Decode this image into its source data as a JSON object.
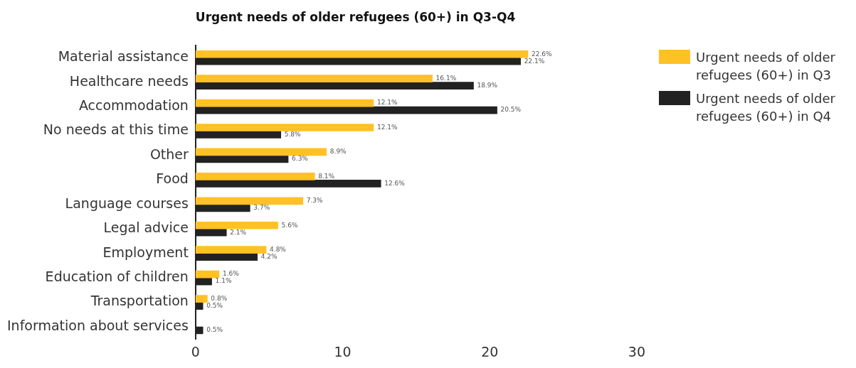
{
  "chart_data": {
    "type": "bar",
    "orientation": "horizontal",
    "title": "Urgent needs of older refugees (60+) in Q3-Q4",
    "categories": [
      "Material assistance",
      "Healthcare needs",
      "Accommodation",
      "No needs at this time",
      "Other",
      "Food",
      "Language courses",
      "Legal advice",
      "Employment",
      "Education of children",
      "Transportation",
      "Information about services"
    ],
    "series": [
      {
        "name": "Urgent needs of older refugees (60+) in Q3",
        "color": "#ffc125",
        "values": [
          22.6,
          16.1,
          12.1,
          12.1,
          8.9,
          8.1,
          7.3,
          5.6,
          4.8,
          1.6,
          0.8,
          null
        ],
        "value_labels": [
          "22.6%",
          "16.1%",
          "12.1%",
          "12.1%",
          "8.9%",
          "8.1%",
          "7.3%",
          "5.6%",
          "4.8%",
          "1.6%",
          "0.8%",
          null
        ]
      },
      {
        "name": "Urgent needs of older refugees (60+) in Q4",
        "color": "#222222",
        "values": [
          22.1,
          18.9,
          20.5,
          5.8,
          6.3,
          12.6,
          3.7,
          2.1,
          4.2,
          1.1,
          0.5,
          0.5
        ],
        "value_labels": [
          "22.1%",
          "18.9%",
          "20.5%",
          "5.8%",
          "6.3%",
          "12.6%",
          "3.7%",
          "2.1%",
          "4.2%",
          "1.1%",
          "0.5%",
          "0.5%"
        ]
      }
    ],
    "xlim": [
      0,
      30
    ],
    "xticks": [
      0,
      10,
      20,
      30
    ],
    "grid": false,
    "legend": "top right"
  }
}
